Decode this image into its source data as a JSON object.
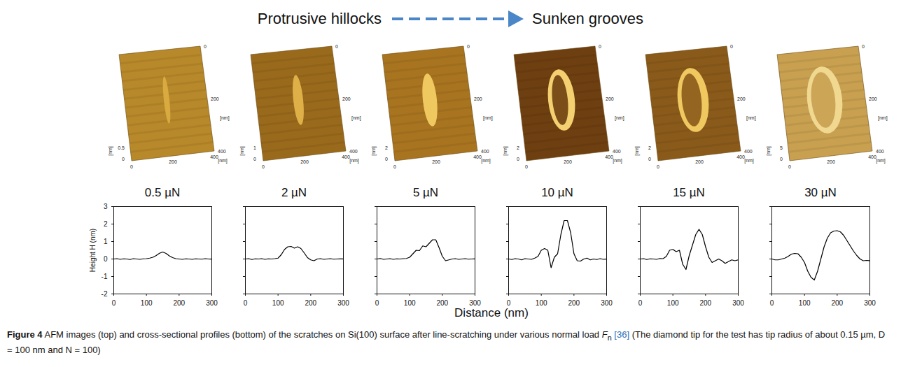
{
  "header": {
    "left": "Protrusive hillocks",
    "right": "Sunken grooves"
  },
  "images": {
    "ticks": [
      0,
      200,
      400
    ],
    "unit": "[nm]",
    "z_ticks": [
      [
        0,
        0.5
      ],
      [
        0,
        1
      ],
      [
        0,
        2
      ],
      [
        0,
        2
      ],
      [
        0,
        2
      ],
      [
        0,
        5
      ]
    ]
  },
  "chart_data": [
    {
      "type": "line",
      "title": "0.5 µN",
      "color": "#000000",
      "y_label": "Height H (nm)",
      "x": [
        0,
        10,
        20,
        30,
        40,
        50,
        60,
        70,
        80,
        90,
        100,
        110,
        120,
        130,
        140,
        150,
        160,
        170,
        180,
        190,
        200,
        210,
        220,
        230,
        240,
        250,
        260,
        270,
        280,
        290,
        300
      ],
      "values": [
        0,
        0.02,
        -0.02,
        0.01,
        0,
        -0.03,
        0.02,
        0,
        -0.02,
        0.01,
        0.02,
        0.05,
        0.1,
        0.2,
        0.33,
        0.4,
        0.32,
        0.18,
        0.08,
        0.02,
        0,
        -0.02,
        0.01,
        0,
        -0.02,
        0.01,
        0,
        -0.01,
        0.02,
        0,
        -0.01
      ],
      "xlim": [
        0,
        300
      ],
      "xticks": [
        0,
        100,
        200,
        300
      ],
      "ylim": [
        -2,
        3
      ],
      "yticks": [
        -2,
        -1,
        0,
        1,
        2,
        3
      ]
    },
    {
      "type": "line",
      "title": "2 µN",
      "color": "#000000",
      "tick_labels": "x",
      "x": [
        0,
        10,
        20,
        30,
        40,
        50,
        60,
        70,
        80,
        90,
        100,
        110,
        120,
        130,
        140,
        150,
        160,
        170,
        180,
        190,
        200,
        210,
        220,
        230,
        240,
        250,
        260,
        270,
        280,
        290,
        300
      ],
      "values": [
        0,
        0.02,
        -0.03,
        0.01,
        0,
        0.02,
        -0.02,
        0.01,
        0,
        0.02,
        0.05,
        0.25,
        0.55,
        0.7,
        0.72,
        0.62,
        0.7,
        0.6,
        0.35,
        0.08,
        -0.05,
        -0.1,
        0,
        0.02,
        -0.02,
        0,
        0.02,
        -0.01,
        0,
        0.01,
        0
      ],
      "xlim": [
        0,
        300
      ],
      "xticks": [
        0,
        100,
        200,
        300
      ],
      "ylim": [
        -2,
        3
      ],
      "yticks": [
        -2,
        -1,
        0,
        1,
        2,
        3
      ]
    },
    {
      "type": "line",
      "title": "5 µN",
      "color": "#000000",
      "tick_labels": "x",
      "x": [
        0,
        10,
        20,
        30,
        40,
        50,
        60,
        70,
        80,
        90,
        100,
        110,
        120,
        130,
        140,
        150,
        160,
        170,
        180,
        190,
        200,
        210,
        220,
        230,
        240,
        250,
        260,
        270,
        280,
        290,
        300
      ],
      "values": [
        0,
        0.03,
        -0.02,
        0,
        0.02,
        -0.02,
        0.01,
        0,
        0.02,
        0.03,
        0.1,
        0.3,
        0.5,
        0.48,
        0.75,
        0.7,
        0.9,
        1.1,
        1.1,
        0.65,
        0.15,
        -0.1,
        -0.05,
        0,
        0.02,
        -0.02,
        0,
        0.02,
        -0.01,
        0,
        0.01
      ],
      "xlim": [
        0,
        300
      ],
      "xticks": [
        0,
        100,
        200,
        300
      ],
      "ylim": [
        -2,
        3
      ],
      "yticks": [
        -2,
        -1,
        0,
        1,
        2,
        3
      ]
    },
    {
      "type": "line",
      "title": "10 µN",
      "color": "#000000",
      "tick_labels": "x",
      "x": [
        0,
        10,
        20,
        30,
        40,
        50,
        60,
        70,
        80,
        90,
        100,
        110,
        120,
        130,
        140,
        150,
        160,
        170,
        180,
        190,
        200,
        210,
        220,
        230,
        240,
        250,
        260,
        270,
        280,
        290,
        300
      ],
      "values": [
        0,
        -0.03,
        0.02,
        0,
        -0.05,
        0.02,
        0,
        -0.02,
        0.05,
        0.15,
        0.5,
        0.6,
        0.5,
        -0.5,
        0.1,
        0.3,
        1.4,
        2.2,
        2.2,
        1.5,
        0.3,
        -0.1,
        -0.12,
        0,
        0.05,
        -0.05,
        0,
        -0.03,
        0.02,
        -0.02,
        0
      ],
      "xlim": [
        0,
        300
      ],
      "xticks": [
        0,
        100,
        200,
        300
      ],
      "ylim": [
        -2,
        3
      ],
      "yticks": [
        -2,
        -1,
        0,
        1,
        2,
        3
      ]
    },
    {
      "type": "line",
      "title": "15 µN",
      "color": "#000000",
      "tick_labels": "x",
      "x": [
        0,
        10,
        20,
        30,
        40,
        50,
        60,
        70,
        80,
        90,
        100,
        110,
        120,
        130,
        140,
        150,
        160,
        170,
        180,
        190,
        200,
        210,
        220,
        230,
        240,
        250,
        260,
        270,
        280,
        290,
        300
      ],
      "values": [
        0,
        0.02,
        -0.03,
        0.01,
        0,
        -0.02,
        0.03,
        0.02,
        0.15,
        0.5,
        0.55,
        0.42,
        0.5,
        -0.3,
        -0.6,
        0.2,
        0.8,
        1.4,
        1.7,
        1.4,
        0.7,
        0.1,
        -0.2,
        -0.1,
        0,
        -0.1,
        -0.25,
        -0.15,
        -0.05,
        -0.1,
        -0.05
      ],
      "xlim": [
        0,
        300
      ],
      "xticks": [
        0,
        100,
        200,
        300
      ],
      "ylim": [
        -2,
        3
      ],
      "yticks": [
        -2,
        -1,
        0,
        1,
        2,
        3
      ]
    },
    {
      "type": "line",
      "title": "30 µN",
      "color": "#000000",
      "tick_labels": "x",
      "x": [
        0,
        10,
        20,
        30,
        40,
        50,
        60,
        70,
        80,
        90,
        100,
        110,
        120,
        130,
        140,
        150,
        160,
        170,
        180,
        190,
        200,
        210,
        220,
        230,
        240,
        250,
        260,
        270,
        280,
        290,
        300
      ],
      "values": [
        0,
        -0.05,
        -0.05,
        0,
        0.05,
        0.15,
        0.28,
        0.32,
        0.3,
        0.1,
        -0.2,
        -0.7,
        -1.05,
        -1.2,
        -0.7,
        0,
        0.7,
        1.2,
        1.5,
        1.6,
        1.62,
        1.55,
        1.35,
        1.05,
        0.75,
        0.45,
        0.2,
        0,
        -0.1,
        -0.08,
        -0.1
      ],
      "xlim": [
        0,
        300
      ],
      "xticks": [
        0,
        100,
        200,
        300
      ],
      "ylim": [
        -2,
        3
      ],
      "yticks": [
        -2,
        -1,
        0,
        1,
        2,
        3
      ]
    }
  ],
  "x_label": "Distance (nm)",
  "caption": {
    "label": "Figure 4",
    "text_before": "AFM images (top) and cross-sectional profiles (bottom) of the scratches on Si(100) surface after line-scratching under various normal load",
    "symbol": "F",
    "symbol_sub": "n",
    "ref": "[36]",
    "text_after": "(The diamond tip for the test has tip radius of about 0.15 µm, D = 100 nm and N = 100)"
  }
}
